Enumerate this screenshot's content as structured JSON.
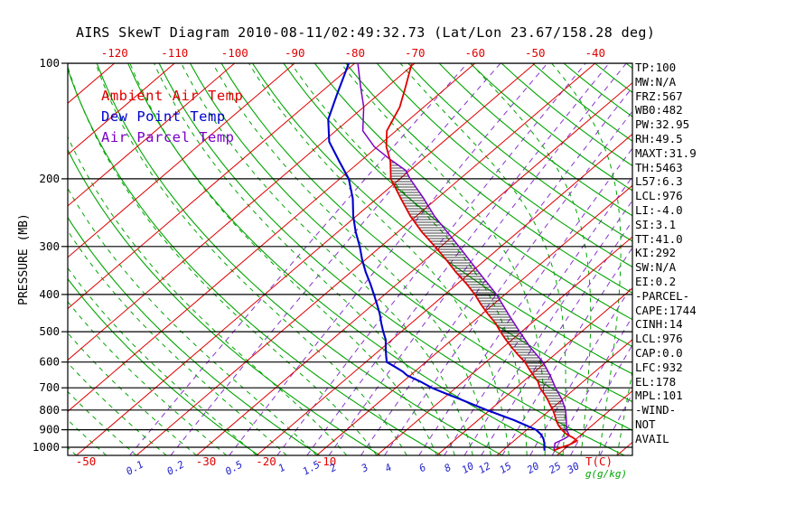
{
  "title": "AIRS SkewT Diagram 2010-08-11/02:49:32.73 (Lat/Lon 23.67/158.28 deg)",
  "colors": {
    "ambient": "#e00000",
    "dewpoint": "#0000cc",
    "parcel": "#7a00c8",
    "dry_adiabat": "#00a500",
    "moist_adiabat": "#00a500",
    "mixing_line": "#8833cc",
    "mixing_label": "#2222cc",
    "unit_green": "#00a500",
    "axis_text": "#000000"
  },
  "legend": {
    "items": [
      {
        "label": "Ambient Air Temp",
        "color_key": "ambient"
      },
      {
        "label": "Dew Point Temp",
        "color_key": "dewpoint"
      },
      {
        "label": "Air Parcel Temp",
        "color_key": "parcel"
      }
    ]
  },
  "stats_panel": {
    "lines": [
      "TP:100",
      "MW:N/A",
      "FRZ:567",
      "WB0:482",
      "PW:32.95",
      "RH:49.5",
      "MAXT:31.9",
      "TH:5463",
      "L57:6.3",
      "LCL:976",
      "LI:-4.0",
      "SI:3.1",
      "TT:41.0",
      "KI:292",
      "SW:N/A",
      "EI:0.2",
      "-PARCEL-",
      "CAPE:1744",
      "CINH:14",
      "LCL:976",
      "CAP:0.0",
      "LFC:932",
      "EL:178",
      "MPL:101",
      "-WIND-",
      "NOT",
      "AVAIL"
    ]
  },
  "chart_data": {
    "type": "line",
    "subtype": "skew-t-log-p",
    "title": "AIRS SkewT Diagram 2010-08-11/02:49:32.73 (Lat/Lon 23.67/158.28 deg)",
    "pressure_axis": {
      "label": "PRESSURE (MB)",
      "ticks": [
        100,
        200,
        300,
        400,
        500,
        600,
        700,
        800,
        900,
        1000
      ],
      "range": [
        100,
        1050
      ],
      "scale": "log"
    },
    "temp_axis": {
      "unit_label": "T(C)",
      "top_tick_labels": [
        -120,
        -110,
        -100,
        -90,
        -80,
        -70,
        -60,
        -50,
        -40
      ],
      "bottom_tick_labels": [
        -50,
        -30,
        -20,
        -10
      ],
      "skewed": true
    },
    "mixing_ratio_axis": {
      "unit_label": "g(g/kg)",
      "tick_labels": [
        0.1,
        0.2,
        0.5,
        1,
        1.5,
        2,
        3,
        4,
        6,
        8,
        10,
        12,
        15,
        20,
        25,
        30
      ]
    },
    "grid": {
      "isotherms_C": [
        -120,
        -110,
        -100,
        -90,
        -80,
        -70,
        -60,
        -50,
        -40,
        -30,
        -20,
        -10,
        0,
        10,
        20,
        30,
        40
      ],
      "dry_adiabats_K": [
        250,
        260,
        270,
        280,
        290,
        300,
        310,
        320,
        330,
        340,
        350,
        360,
        370,
        380,
        390,
        400,
        410,
        420,
        430,
        440,
        450,
        460,
        470,
        480
      ],
      "moist_adiabats_C": [
        -70,
        -65,
        -60,
        -55,
        -50,
        -45,
        -40,
        -35,
        -30,
        -25,
        -20,
        -15,
        -10,
        -5,
        0,
        5,
        10,
        13,
        16,
        19,
        22,
        25,
        28,
        31,
        34,
        37,
        40,
        43,
        46,
        49
      ],
      "mixing_ratio_g_kg": [
        0.1,
        0.2,
        0.5,
        1,
        1.5,
        2,
        3,
        4,
        6,
        8,
        10,
        12,
        15,
        20,
        25,
        30,
        40
      ]
    },
    "series": [
      {
        "name": "Ambient Air Temp",
        "color_key": "ambient",
        "points_p_T": [
          [
            100,
            -70.5
          ],
          [
            115,
            -67
          ],
          [
            130,
            -64
          ],
          [
            150,
            -61.5
          ],
          [
            165,
            -58.5
          ],
          [
            180,
            -55
          ],
          [
            200,
            -51.5
          ],
          [
            225,
            -46
          ],
          [
            250,
            -41
          ],
          [
            275,
            -36
          ],
          [
            300,
            -31
          ],
          [
            325,
            -26.5
          ],
          [
            350,
            -22.5
          ],
          [
            375,
            -18.5
          ],
          [
            400,
            -15
          ],
          [
            425,
            -12
          ],
          [
            450,
            -9
          ],
          [
            475,
            -6
          ],
          [
            500,
            -3.5
          ],
          [
            525,
            -1
          ],
          [
            550,
            1.5
          ],
          [
            575,
            4
          ],
          [
            600,
            6.5
          ],
          [
            625,
            8.5
          ],
          [
            650,
            10.5
          ],
          [
            675,
            12.5
          ],
          [
            700,
            14
          ],
          [
            725,
            15.8
          ],
          [
            750,
            17.5
          ],
          [
            775,
            19
          ],
          [
            800,
            20.5
          ],
          [
            825,
            21.8
          ],
          [
            850,
            23
          ],
          [
            875,
            24.3
          ],
          [
            900,
            25.8
          ],
          [
            925,
            27.5
          ],
          [
            945,
            29.3
          ],
          [
            962,
            30.5
          ],
          [
            985,
            30.0
          ],
          [
            1005,
            29.0
          ],
          [
            1020,
            28.5
          ]
        ]
      },
      {
        "name": "Dew Point Temp",
        "color_key": "dewpoint",
        "points_p_T": [
          [
            100,
            -81
          ],
          [
            120,
            -77
          ],
          [
            140,
            -73.5
          ],
          [
            160,
            -69
          ],
          [
            180,
            -63.5
          ],
          [
            200,
            -58.5
          ],
          [
            225,
            -54
          ],
          [
            250,
            -50.5
          ],
          [
            275,
            -47
          ],
          [
            300,
            -43.5
          ],
          [
            325,
            -40.5
          ],
          [
            350,
            -37.5
          ],
          [
            375,
            -34.5
          ],
          [
            400,
            -31.8
          ],
          [
            425,
            -29.3
          ],
          [
            450,
            -27
          ],
          [
            475,
            -25
          ],
          [
            500,
            -23
          ],
          [
            525,
            -21
          ],
          [
            550,
            -19.5
          ],
          [
            575,
            -18
          ],
          [
            600,
            -16.5
          ],
          [
            615,
            -14.5
          ],
          [
            635,
            -12
          ],
          [
            650,
            -10.5
          ],
          [
            675,
            -7
          ],
          [
            700,
            -4
          ],
          [
            725,
            -0.5
          ],
          [
            750,
            3
          ],
          [
            775,
            6.3
          ],
          [
            800,
            9.5
          ],
          [
            825,
            12.8
          ],
          [
            850,
            16
          ],
          [
            875,
            18.8
          ],
          [
            900,
            21.5
          ],
          [
            925,
            23.2
          ],
          [
            950,
            24.5
          ],
          [
            975,
            25.5
          ],
          [
            1000,
            26.3
          ],
          [
            1020,
            27.0
          ]
        ]
      },
      {
        "name": "Air Parcel Temp",
        "color_key": "parcel",
        "points_p_T": [
          [
            100,
            -79.5
          ],
          [
            115,
            -74.5
          ],
          [
            130,
            -70
          ],
          [
            150,
            -65.5
          ],
          [
            165,
            -60.5
          ],
          [
            178,
            -55.4
          ],
          [
            190,
            -50.7
          ],
          [
            200,
            -48.3
          ],
          [
            225,
            -42.2
          ],
          [
            250,
            -37
          ],
          [
            300,
            -27
          ],
          [
            350,
            -18.7
          ],
          [
            400,
            -11.4
          ],
          [
            450,
            -5.6
          ],
          [
            500,
            -0.3
          ],
          [
            550,
            4.6
          ],
          [
            600,
            9.5
          ],
          [
            650,
            13.3
          ],
          [
            700,
            16.6
          ],
          [
            750,
            19.9
          ],
          [
            800,
            22.6
          ],
          [
            850,
            24.7
          ],
          [
            900,
            26.6
          ],
          [
            932,
            28.2
          ],
          [
            950,
            28.0
          ],
          [
            976,
            27.3
          ],
          [
            1000,
            28.0
          ],
          [
            1015,
            28.4
          ]
        ]
      }
    ],
    "cape_hatch": {
      "p_top": 178,
      "p_bottom": 935
    }
  }
}
